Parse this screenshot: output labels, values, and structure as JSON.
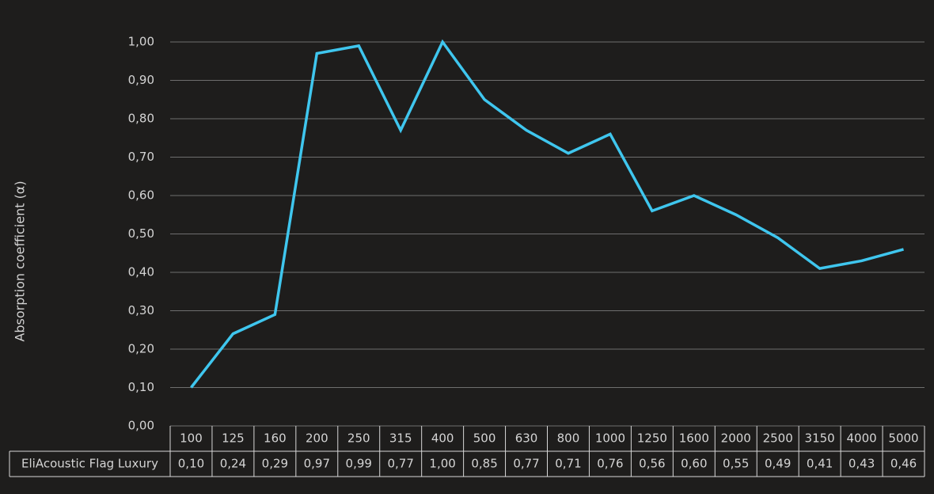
{
  "chart_data": {
    "type": "line",
    "ylabel": "Absorption coefficient (α)",
    "categories": [
      "100",
      "125",
      "160",
      "200",
      "250",
      "315",
      "400",
      "500",
      "630",
      "800",
      "1000",
      "1250",
      "1600",
      "2000",
      "2500",
      "3150",
      "4000",
      "5000"
    ],
    "series": [
      {
        "name": "EliAcoustic Flag Luxury",
        "color": "#3fc6ee",
        "values": [
          0.1,
          0.24,
          0.29,
          0.97,
          0.99,
          0.77,
          1.0,
          0.85,
          0.77,
          0.71,
          0.76,
          0.56,
          0.6,
          0.55,
          0.49,
          0.41,
          0.43,
          0.46
        ],
        "value_labels": [
          "0,10",
          "0,24",
          "0,29",
          "0,97",
          "0,99",
          "0,77",
          "1,00",
          "0,85",
          "0,77",
          "0,71",
          "0,76",
          "0,56",
          "0,60",
          "0,55",
          "0,49",
          "0,41",
          "0,43",
          "0,46"
        ]
      }
    ],
    "ylim": [
      0,
      1
    ],
    "yticks": [
      {
        "value": 0,
        "label": "0,00"
      },
      {
        "value": 0.1,
        "label": "0,10"
      },
      {
        "value": 0.2,
        "label": "0,20"
      },
      {
        "value": 0.3,
        "label": "0,30"
      },
      {
        "value": 0.4,
        "label": "0,40"
      },
      {
        "value": 0.5,
        "label": "0,50"
      },
      {
        "value": 0.6,
        "label": "0,60"
      },
      {
        "value": 0.7,
        "label": "0,70"
      },
      {
        "value": 0.8,
        "label": "0,80"
      },
      {
        "value": 0.9,
        "label": "0,90"
      },
      {
        "value": 1,
        "label": "1,00"
      }
    ],
    "grid": true
  }
}
